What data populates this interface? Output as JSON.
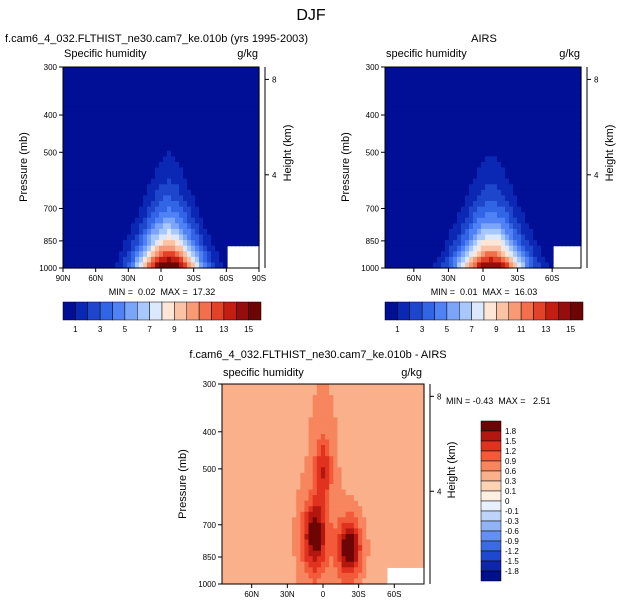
{
  "page_title": "DJF",
  "chart_data": [
    {
      "type": "heatmap",
      "title": "f.cam6_4_032.FLTHIST_ne30.cam7_ke.010b (yrs 1995-2003)",
      "left_label": "Specific humidity",
      "right_label": "g/kg",
      "xlabel": "",
      "ylabel": "Pressure (mb)",
      "y2label": "Height (km)",
      "x_ticks": [
        "90N",
        "60N",
        "30N",
        "0",
        "30S",
        "60S",
        "90S"
      ],
      "y_ticks": [
        "300",
        "400",
        "500",
        "700",
        "850",
        "1000"
      ],
      "y2_ticks": [
        "8",
        "4"
      ],
      "stats": "MIN =  0.02  MAX =  17.32",
      "min": 0.02,
      "max": 17.32,
      "colorbar_ticks": [
        "1",
        "3",
        "5",
        "7",
        "9",
        "11",
        "13",
        "15"
      ]
    },
    {
      "type": "heatmap",
      "title": "AIRS",
      "left_label": "specific humidity",
      "right_label": "g/kg",
      "xlabel": "",
      "ylabel": "Pressure (mb)",
      "y2label": "Height (km)",
      "x_ticks": [
        "60N",
        "30N",
        "0",
        "30S",
        "60S"
      ],
      "y_ticks": [
        "300",
        "400",
        "500",
        "700",
        "850",
        "1000"
      ],
      "y2_ticks": [
        "8",
        "4"
      ],
      "stats": "MIN =  0.01  MAX =  16.03",
      "min": 0.01,
      "max": 16.03,
      "colorbar_ticks": [
        "1",
        "3",
        "5",
        "7",
        "9",
        "11",
        "13",
        "15"
      ]
    },
    {
      "type": "heatmap",
      "title": "f.cam6_4_032.FLTHIST_ne30.cam7_ke.010b - AIRS",
      "left_label": "specific humidity",
      "right_label": "g/kg",
      "xlabel": "",
      "ylabel": "Pressure (mb)",
      "y2label": "Height (km)",
      "x_ticks": [
        "60N",
        "30N",
        "0",
        "30S",
        "60S"
      ],
      "y_ticks": [
        "300",
        "400",
        "500",
        "700",
        "850",
        "1000"
      ],
      "y2_ticks": [
        "8",
        "4"
      ],
      "stats": "MIN = -0.43  MAX =   2.51",
      "min": -0.43,
      "max": 2.51,
      "colorbar_ticks": [
        "1.8",
        "1.5",
        "1.2",
        "0.9",
        "0.6",
        "0.3",
        "0.1",
        "0",
        "-0.1",
        "-0.3",
        "-0.6",
        "-0.9",
        "-1.2",
        "-1.5",
        "-1.8"
      ]
    }
  ],
  "colors": {
    "abs_scale": [
      "#000f96",
      "#0a28b4",
      "#1e46cd",
      "#3264e6",
      "#5082f5",
      "#7aa5f8",
      "#a8c8fb",
      "#dce8fd",
      "#fde6d6",
      "#fbc3a6",
      "#f89a76",
      "#f26e4c",
      "#e34228",
      "#c41d12",
      "#960d0d",
      "#6e0505"
    ],
    "diff_scale": [
      "#6e0505",
      "#b4170f",
      "#e0321f",
      "#f25a3a",
      "#f7855e",
      "#fab08b",
      "#fdd3b6",
      "#fdf0e1",
      "#e9f0fd",
      "#bdd4fa",
      "#8fb3f6",
      "#6491ef",
      "#3b6be3",
      "#1e48cf",
      "#0d26ad",
      "#000f8a"
    ]
  }
}
